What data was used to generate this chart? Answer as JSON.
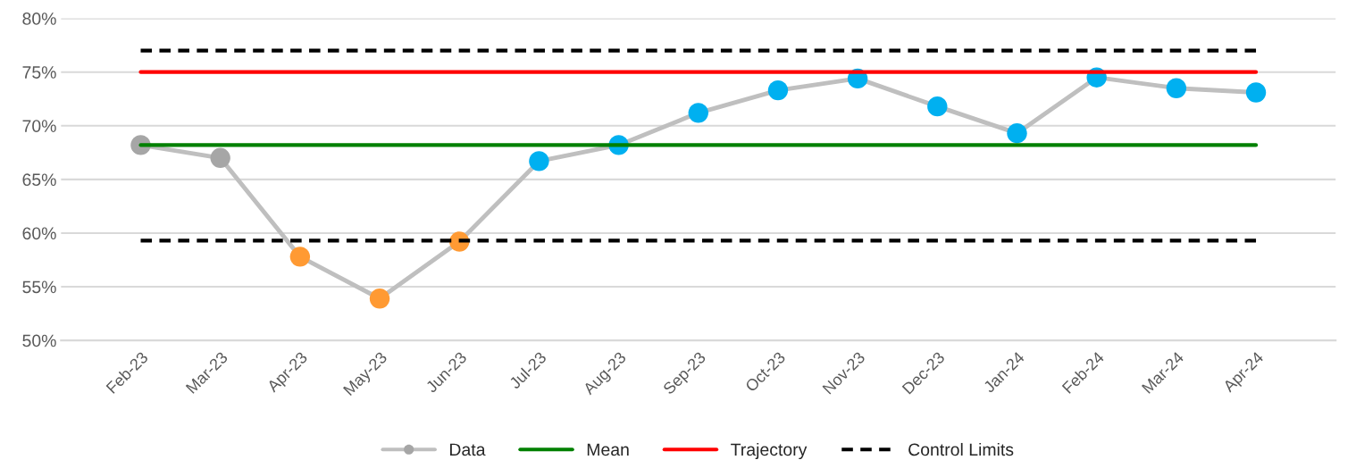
{
  "chart_data": {
    "type": "line",
    "categories": [
      "Feb-23",
      "Mar-23",
      "Apr-23",
      "May-23",
      "Jun-23",
      "Jul-23",
      "Aug-23",
      "Sep-23",
      "Oct-23",
      "Nov-23",
      "Dec-23",
      "Jan-24",
      "Feb-24",
      "Mar-24",
      "Apr-24"
    ],
    "series": [
      {
        "name": "Data",
        "color": "#bfbfbf",
        "marker": "circle",
        "line_style": "solid",
        "colors": [
          "#a6a6a6",
          "#a6a6a6",
          "#ff9a33",
          "#ff9a33",
          "#ff9a33",
          "#00b0f0",
          "#00b0f0",
          "#00b0f0",
          "#00b0f0",
          "#00b0f0",
          "#00b0f0",
          "#00b0f0",
          "#00b0f0",
          "#00b0f0",
          "#00b0f0"
        ],
        "values": [
          68.2,
          67.0,
          57.8,
          53.9,
          59.2,
          66.7,
          68.2,
          71.2,
          73.3,
          74.4,
          71.8,
          69.3,
          74.5,
          73.5,
          73.1
        ]
      },
      {
        "name": "Mean",
        "color": "#008000",
        "marker": "none",
        "line_style": "solid",
        "values": [
          68.2,
          68.2,
          68.2,
          68.2,
          68.2,
          68.2,
          68.2,
          68.2,
          68.2,
          68.2,
          68.2,
          68.2,
          68.2,
          68.2,
          68.2
        ]
      },
      {
        "name": "Trajectory",
        "color": "#ff0000",
        "marker": "none",
        "line_style": "solid",
        "values": [
          75,
          75,
          75,
          75,
          75,
          75,
          75,
          75,
          75,
          75,
          75,
          75,
          75,
          75,
          75
        ]
      },
      {
        "name": "Control Limits",
        "color": "#000000",
        "marker": "none",
        "line_style": "dashed",
        "values": [
          77.0,
          77.0,
          77.0,
          77.0,
          77.0,
          77.0,
          77.0,
          77.0,
          77.0,
          77.0,
          77.0,
          77.0,
          77.0,
          77.0,
          77.0
        ]
      },
      {
        "color": "#000000",
        "marker": "none",
        "line_style": "dashed",
        "values": [
          59.3,
          59.3,
          59.3,
          59.3,
          59.3,
          59.3,
          59.3,
          59.3,
          59.3,
          59.3,
          59.3,
          59.3,
          59.3,
          59.3,
          59.3
        ]
      }
    ],
    "ylim": [
      50,
      80
    ],
    "yticks": [
      {
        "value": 50,
        "label": "50%"
      },
      {
        "value": 55,
        "label": "55%"
      },
      {
        "value": 60,
        "label": "60%"
      },
      {
        "value": 65,
        "label": "65%"
      },
      {
        "value": 70,
        "label": "70%"
      },
      {
        "value": 75,
        "label": "75%"
      },
      {
        "value": 80,
        "label": "80%"
      }
    ],
    "grid": "y",
    "legend": "bottom"
  }
}
